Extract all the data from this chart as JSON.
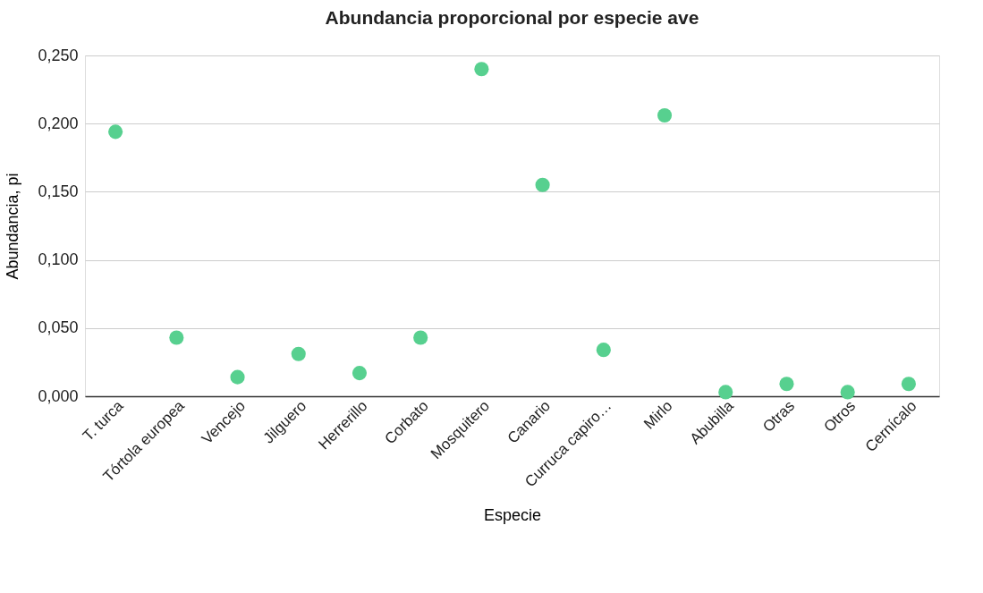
{
  "chart_data": {
    "type": "scatter",
    "title": "Abundancia proporcional por especie ave",
    "xlabel": "Especie",
    "ylabel": "Abundancia, pi",
    "categories": [
      "T. turca",
      "Tórtola europea",
      "Vencejo",
      "Jilguero",
      "Herrerillo",
      "Corbato",
      "Mosquitero",
      "Canario",
      "Curruca capiro…",
      "Mirlo",
      "Abubilla",
      "Otras",
      "Otros",
      "Cernícalo"
    ],
    "values": [
      0.194,
      0.043,
      0.014,
      0.031,
      0.017,
      0.043,
      0.24,
      0.155,
      0.034,
      0.206,
      0.003,
      0.009,
      0.003,
      0.009
    ],
    "color": "#57d08f",
    "ylim": [
      0,
      0.25
    ],
    "yticks": [
      {
        "value": 0,
        "label": "0,000"
      },
      {
        "value": 0.05,
        "label": "0,050"
      },
      {
        "value": 0.1,
        "label": "0,100"
      },
      {
        "value": 0.15,
        "label": "0,150"
      },
      {
        "value": 0.2,
        "label": "0,200"
      },
      {
        "value": 0.25,
        "label": "0,250"
      }
    ],
    "grid": "y",
    "legend": false,
    "marker": "circle"
  }
}
